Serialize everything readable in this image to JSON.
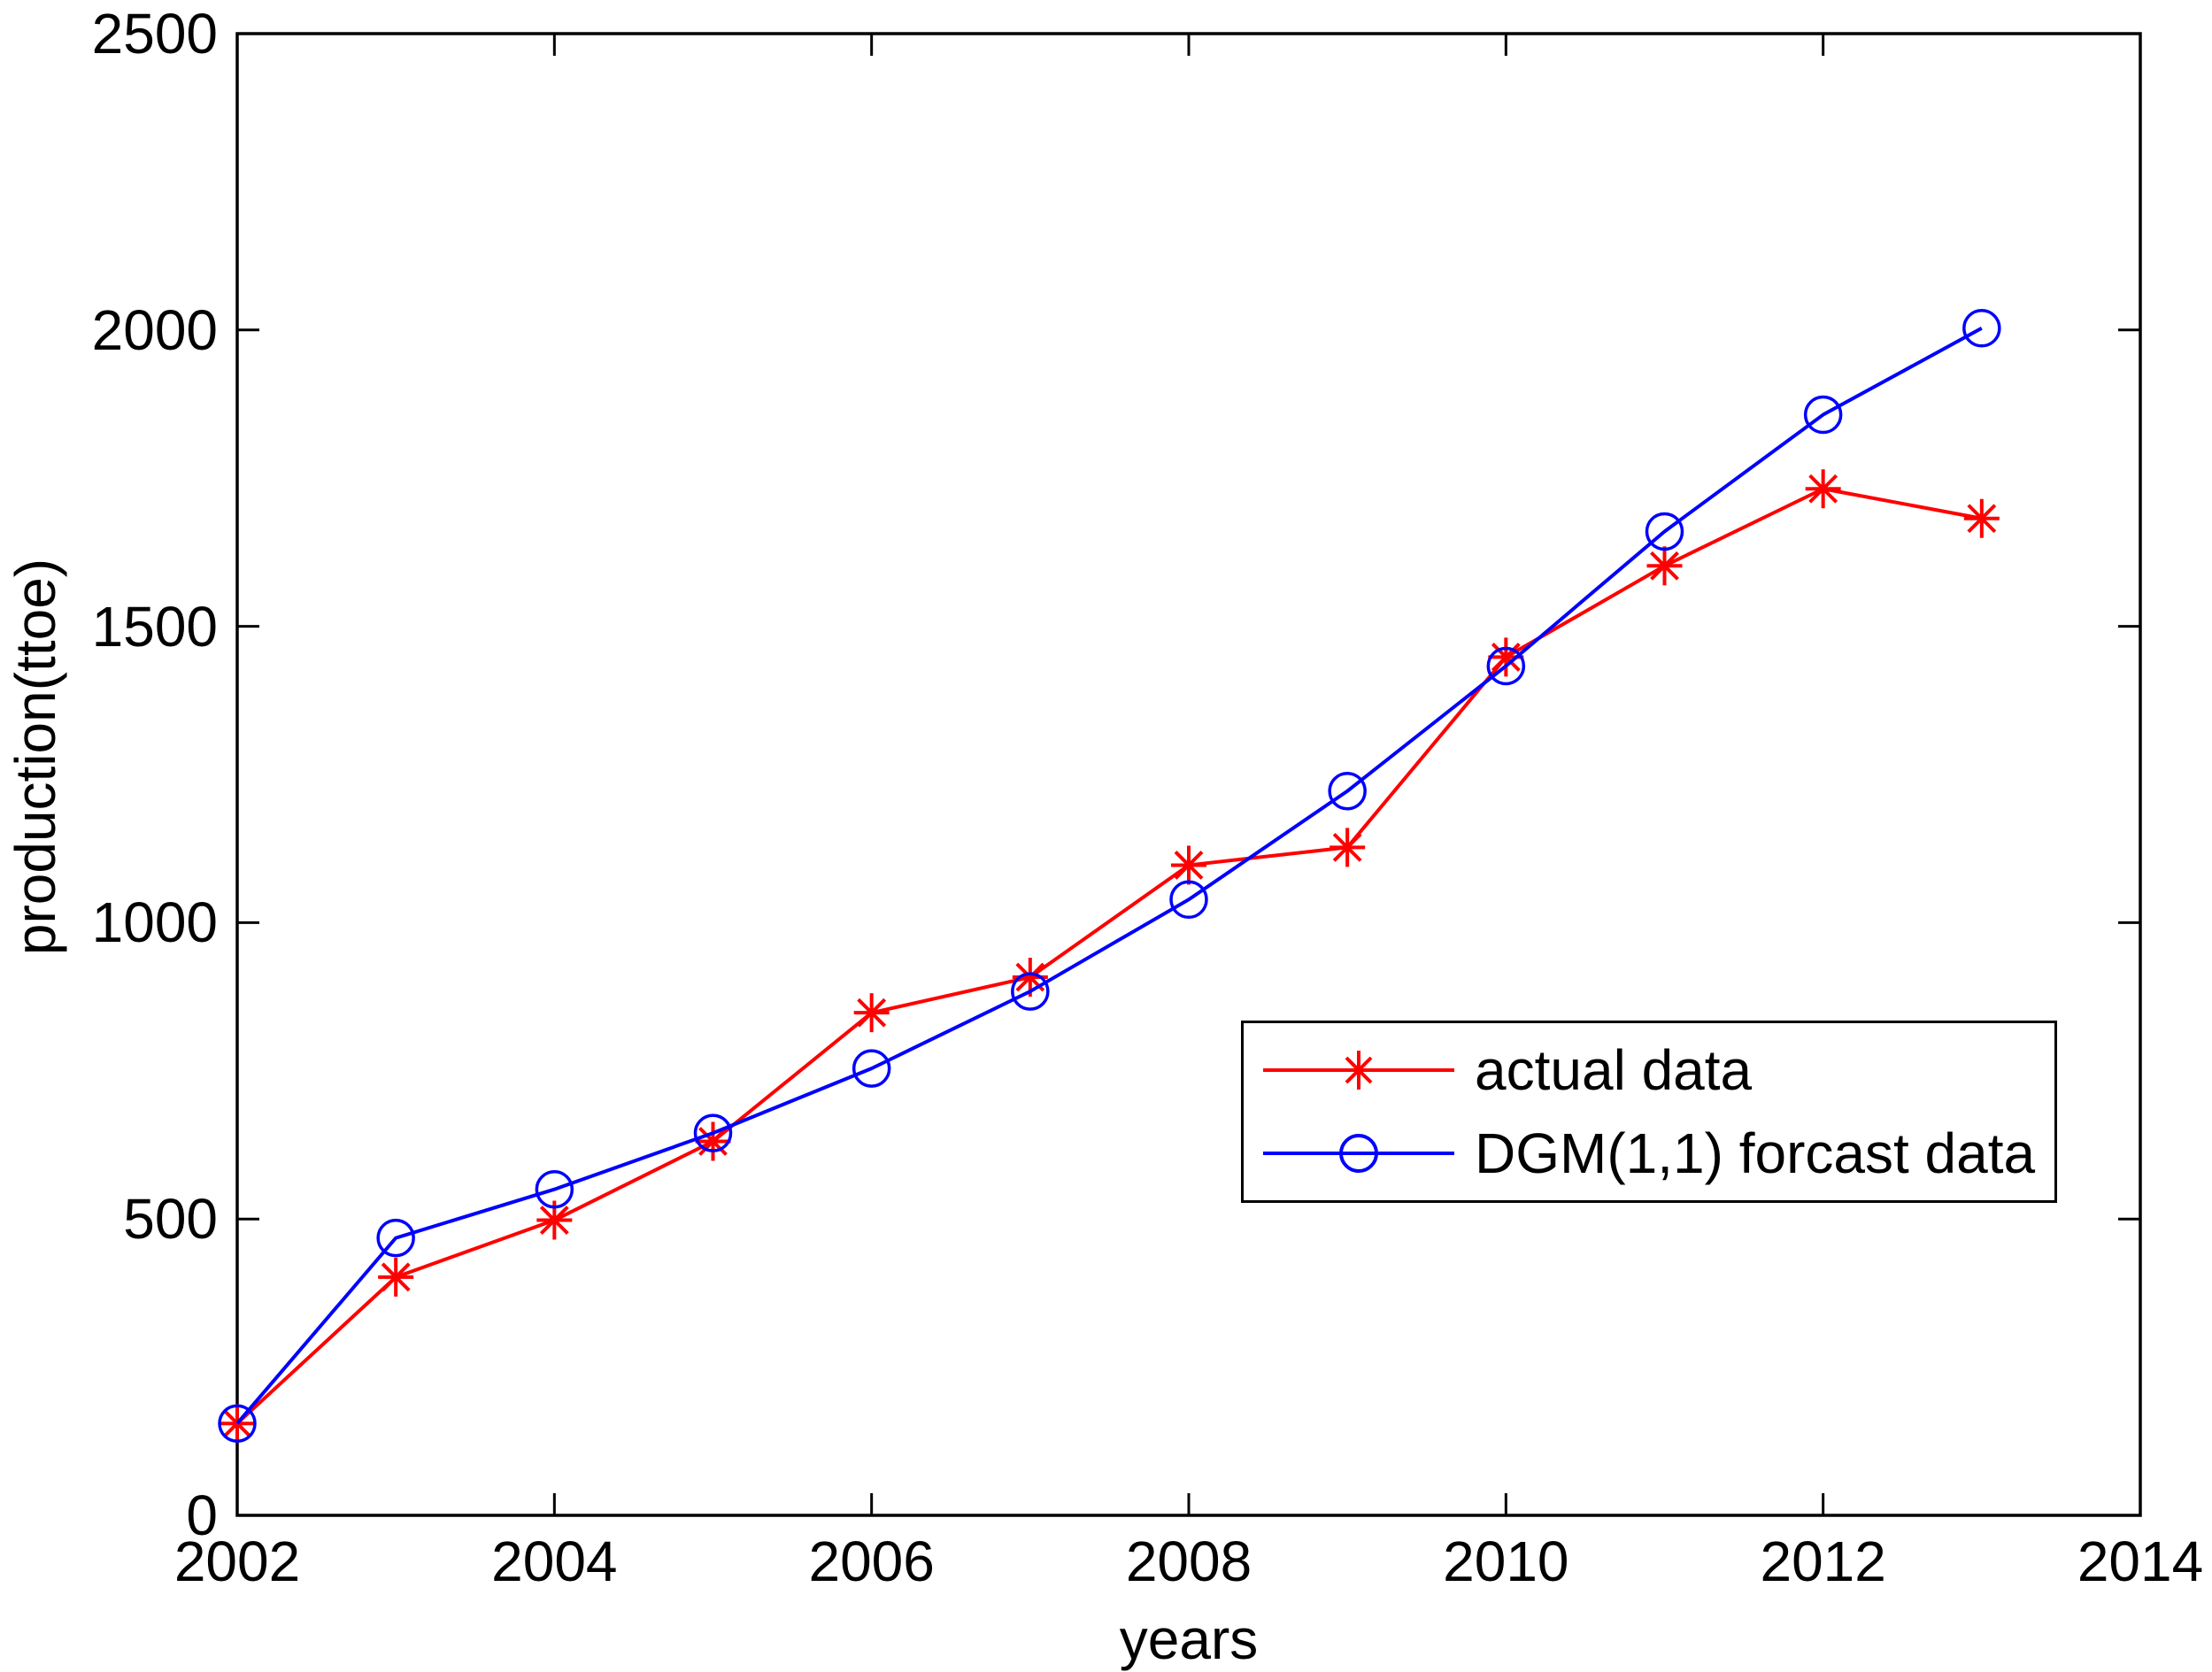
{
  "chart_data": {
    "type": "line",
    "title": "",
    "xlabel": "years",
    "ylabel": "production(ttoe)",
    "xlim": [
      2002,
      2014
    ],
    "ylim": [
      0,
      2500
    ],
    "xticks": [
      2002,
      2004,
      2006,
      2008,
      2010,
      2012,
      2014
    ],
    "yticks": [
      0,
      500,
      1000,
      1500,
      2000,
      2500
    ],
    "grid": false,
    "legend_position": "inside-middle-right",
    "x": [
      2002,
      2003,
      2004,
      2005,
      2006,
      2007,
      2008,
      2009,
      2010,
      2011,
      2012,
      2013
    ],
    "series": [
      {
        "name": "actual data",
        "color": "#ff0000",
        "marker": "asterisk",
        "values": [
          155,
          402,
          498,
          631,
          848,
          908,
          1097,
          1127,
          1448,
          1602,
          1732,
          1682
        ]
      },
      {
        "name": "DGM(1,1) forcast data",
        "color": "#0000ff",
        "marker": "circle",
        "values": [
          155,
          468,
          550,
          645,
          754,
          884,
          1039,
          1222,
          1433,
          1660,
          1857,
          2003
        ]
      }
    ],
    "axis_color": "#000000",
    "background": "#ffffff"
  }
}
